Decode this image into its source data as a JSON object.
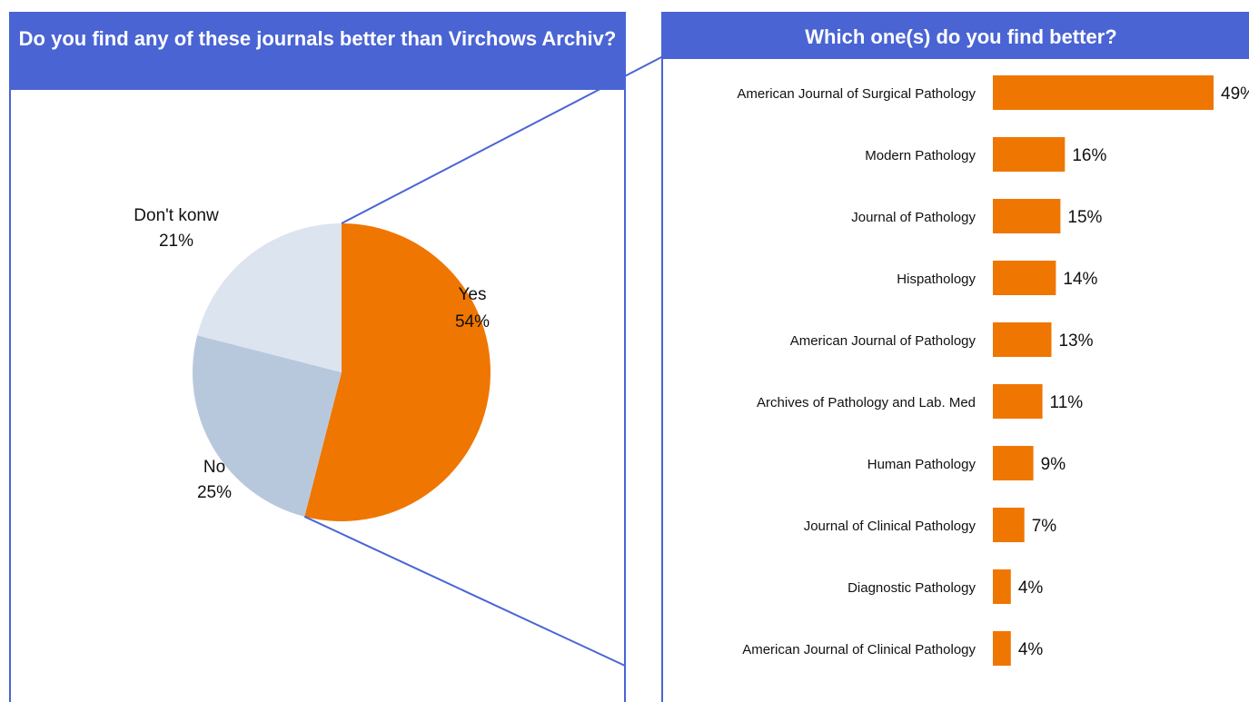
{
  "chart_data": [
    {
      "type": "pie",
      "title": "Do you find any of these journals better than Virchows Archiv?",
      "slices": [
        {
          "label": "Yes",
          "value": 54,
          "value_label": "54%",
          "color": "#ef7600"
        },
        {
          "label": "No",
          "value": 25,
          "value_label": "25%",
          "color": "#b8c8dc"
        },
        {
          "label": "Don't konw",
          "value": 21,
          "value_label": "21%",
          "color": "#dce4f0"
        }
      ]
    },
    {
      "type": "bar",
      "orientation": "horizontal",
      "title": "Which one(s) do you find better?",
      "categories": [
        "American Journal of Surgical Pathology",
        "Modern Pathology",
        "Journal of Pathology",
        "Hispathology",
        "American Journal of Pathology",
        "Archives of Pathology and Lab. Med",
        "Human Pathology",
        "Journal of Clinical Pathology",
        "Diagnostic Pathology",
        "American Journal of Clinical Pathology"
      ],
      "values": [
        49,
        16,
        15,
        14,
        13,
        11,
        9,
        7,
        4,
        4
      ],
      "value_labels": [
        "49%",
        "16%",
        "15%",
        "14%",
        "13%",
        "11%",
        "9%",
        "7%",
        "4%",
        "4%"
      ],
      "color": "#ef7600",
      "xlim": [
        0,
        49
      ]
    }
  ],
  "colors": {
    "header": "#4a64d4",
    "connector": "#4a64d4"
  }
}
